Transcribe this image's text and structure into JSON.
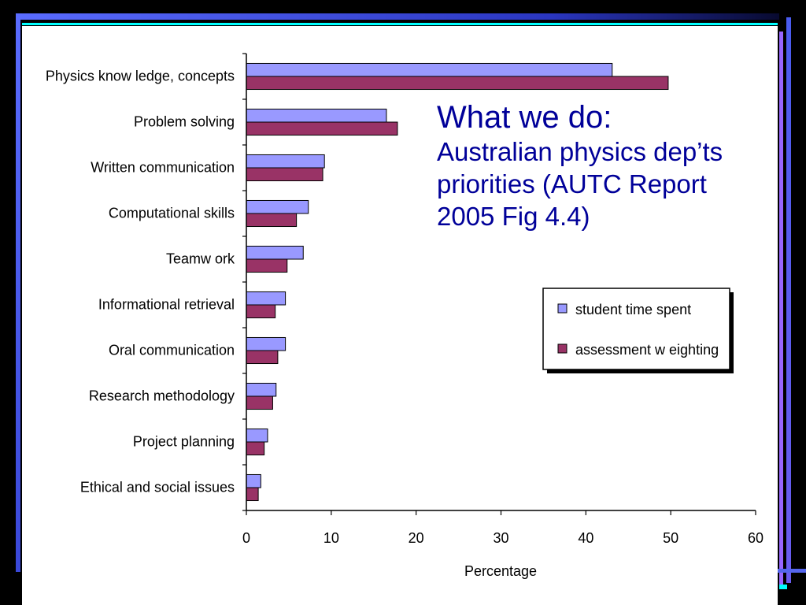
{
  "slide": {
    "title": "What we do:",
    "subtitle_lines": [
      "Australian physics dep’ts",
      "priorities (AUTC Report",
      "2005 Fig 4.4)"
    ]
  },
  "colors": {
    "background": "#000000",
    "content_background": "#FFFFFF",
    "title_text": "#000099",
    "border_cyan": "#00FFFF",
    "border_purple": "#9966FF",
    "border_blue": "#5566EE"
  },
  "chart_data": {
    "type": "bar",
    "orientation": "horizontal",
    "categories": [
      "Physics know ledge, concepts",
      "Problem solving",
      "Written communication",
      "Computational skills",
      "Teamw ork",
      "Informational retrieval",
      "Oral communication",
      "Research methodology",
      "Project planning",
      "Ethical and social issues"
    ],
    "series": [
      {
        "name": "student time spent",
        "color": "#9999FF",
        "values": [
          43.1,
          16.5,
          9.2,
          7.3,
          6.7,
          4.6,
          4.6,
          3.5,
          2.5,
          1.7
        ]
      },
      {
        "name": "assessment w eighting",
        "color": "#993366",
        "values": [
          49.7,
          17.8,
          9.0,
          5.9,
          4.8,
          3.4,
          3.7,
          3.1,
          2.1,
          1.4
        ]
      }
    ],
    "xlabel": "Percentage",
    "xlim": [
      0,
      60
    ],
    "xticks": [
      0,
      10,
      20,
      30,
      40,
      50,
      60
    ],
    "grid": false,
    "legend": "right"
  }
}
